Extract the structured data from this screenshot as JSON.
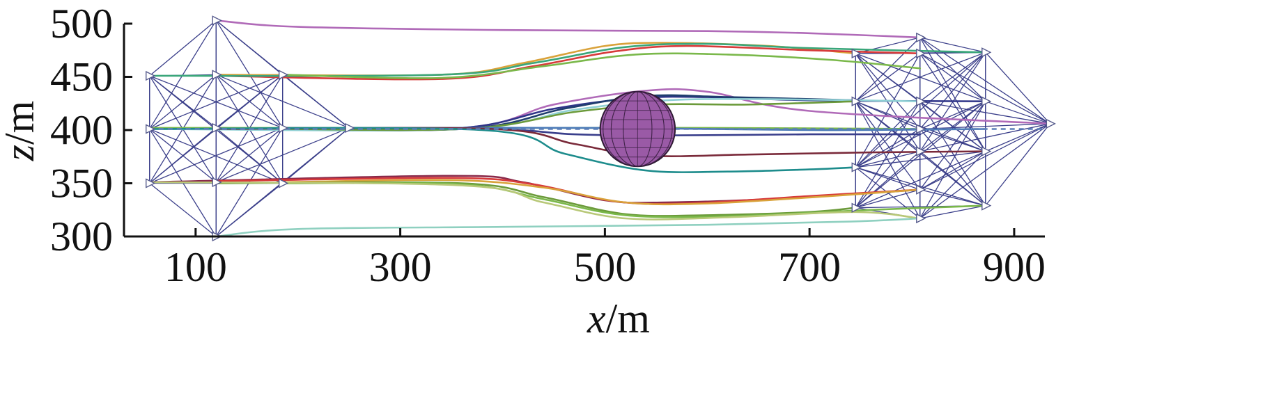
{
  "chart_data": {
    "type": "line",
    "title": "",
    "xlabel": {
      "var": "x",
      "unit": "/m"
    },
    "ylabel": {
      "var": "z",
      "unit": "/m"
    },
    "xlim": [
      30,
      930
    ],
    "ylim": [
      300,
      500
    ],
    "xticks": [
      100,
      300,
      500,
      700,
      900
    ],
    "yticks": [
      300,
      350,
      400,
      450,
      500
    ],
    "grid": false,
    "legend": "none",
    "reference_line": {
      "y": 401,
      "x": [
        55,
        930
      ],
      "style": "dashed",
      "color": "#5b7fb8"
    },
    "obstacle": {
      "shape": "sphere",
      "cx": 532,
      "cz": 401,
      "r": 29,
      "color": "#9a5aa6"
    },
    "formation_start": [
      {
        "x": 55,
        "z": 451
      },
      {
        "x": 120,
        "z": 452
      },
      {
        "x": 185,
        "z": 452
      },
      {
        "x": 55,
        "z": 401
      },
      {
        "x": 120,
        "z": 402
      },
      {
        "x": 185,
        "z": 402
      },
      {
        "x": 250,
        "z": 402
      },
      {
        "x": 55,
        "z": 350
      },
      {
        "x": 120,
        "z": 351
      },
      {
        "x": 185,
        "z": 350
      },
      {
        "x": 120,
        "z": 503
      },
      {
        "x": 120,
        "z": 300
      }
    ],
    "formation_end": [
      {
        "x": 745,
        "z": 472
      },
      {
        "x": 808,
        "z": 487
      },
      {
        "x": 808,
        "z": 472
      },
      {
        "x": 872,
        "z": 473
      },
      {
        "x": 745,
        "z": 427
      },
      {
        "x": 808,
        "z": 427
      },
      {
        "x": 872,
        "z": 427
      },
      {
        "x": 808,
        "z": 401
      },
      {
        "x": 935,
        "z": 406
      },
      {
        "x": 808,
        "z": 380
      },
      {
        "x": 872,
        "z": 380
      },
      {
        "x": 745,
        "z": 365
      },
      {
        "x": 808,
        "z": 344
      },
      {
        "x": 745,
        "z": 327
      },
      {
        "x": 808,
        "z": 317
      },
      {
        "x": 872,
        "z": 329
      }
    ],
    "series": [
      {
        "color": "#b06ab8",
        "points": [
          [
            120,
            503
          ],
          [
            200,
            497
          ],
          [
            400,
            494
          ],
          [
            600,
            493
          ],
          [
            700,
            491
          ],
          [
            808,
            487
          ]
        ]
      },
      {
        "color": "#d9a23a",
        "points": [
          [
            120,
            452
          ],
          [
            340,
            452
          ],
          [
            420,
            463
          ],
          [
            500,
            479
          ],
          [
            560,
            482
          ],
          [
            660,
            479
          ],
          [
            745,
            472
          ]
        ]
      },
      {
        "color": "#d73a3a",
        "points": [
          [
            120,
            451
          ],
          [
            340,
            448
          ],
          [
            430,
            460
          ],
          [
            510,
            474
          ],
          [
            580,
            479
          ],
          [
            700,
            475
          ],
          [
            808,
            472
          ]
        ]
      },
      {
        "color": "#3aa67a",
        "points": [
          [
            55,
            451
          ],
          [
            340,
            452
          ],
          [
            430,
            463
          ],
          [
            520,
            478
          ],
          [
            600,
            481
          ],
          [
            700,
            477
          ],
          [
            872,
            473
          ]
        ]
      },
      {
        "color": "#7ab84a",
        "points": [
          [
            185,
            452
          ],
          [
            340,
            449
          ],
          [
            440,
            460
          ],
          [
            530,
            471
          ],
          [
            620,
            471
          ],
          [
            720,
            466
          ],
          [
            808,
            458
          ]
        ]
      },
      {
        "color": "#b06ab8",
        "points": [
          [
            120,
            402
          ],
          [
            360,
            402
          ],
          [
            450,
            424
          ],
          [
            540,
            437
          ],
          [
            600,
            436
          ],
          [
            700,
            418
          ],
          [
            935,
            406
          ]
        ]
      },
      {
        "color": "#2e3488",
        "points": [
          [
            185,
            402
          ],
          [
            360,
            402
          ],
          [
            450,
            420
          ],
          [
            530,
            430
          ],
          [
            600,
            431
          ],
          [
            700,
            428
          ],
          [
            872,
            427
          ]
        ]
      },
      {
        "color": "#1f3e6e",
        "points": [
          [
            120,
            401
          ],
          [
            360,
            401
          ],
          [
            460,
            420
          ],
          [
            540,
            432
          ],
          [
            620,
            431
          ],
          [
            745,
            428
          ]
        ]
      },
      {
        "color": "#8fd0d4",
        "points": [
          [
            55,
            401
          ],
          [
            360,
            401
          ],
          [
            470,
            419
          ],
          [
            560,
            428
          ],
          [
            660,
            429
          ],
          [
            808,
            427
          ]
        ]
      },
      {
        "color": "#6b9a3a",
        "points": [
          [
            120,
            402
          ],
          [
            360,
            401
          ],
          [
            470,
            417
          ],
          [
            550,
            424
          ],
          [
            640,
            424
          ],
          [
            745,
            427
          ]
        ]
      },
      {
        "color": "#7ab84a",
        "points": [
          [
            55,
            402
          ],
          [
            400,
            402
          ],
          [
            600,
            402
          ],
          [
            808,
            401
          ]
        ]
      },
      {
        "color": "#4a7ab8",
        "points": [
          [
            250,
            402
          ],
          [
            500,
            402
          ],
          [
            700,
            400
          ],
          [
            872,
            401
          ]
        ]
      },
      {
        "color": "#3a3f8c",
        "points": [
          [
            185,
            402
          ],
          [
            390,
            401
          ],
          [
            470,
            396
          ],
          [
            560,
            395
          ],
          [
            700,
            396
          ],
          [
            808,
            396
          ]
        ]
      },
      {
        "color": "#7a2a3a",
        "points": [
          [
            120,
            401
          ],
          [
            390,
            401
          ],
          [
            470,
            387
          ],
          [
            540,
            376
          ],
          [
            640,
            377
          ],
          [
            760,
            379
          ],
          [
            872,
            380
          ]
        ]
      },
      {
        "color": "#1d8c8c",
        "points": [
          [
            55,
            401
          ],
          [
            380,
            400
          ],
          [
            460,
            378
          ],
          [
            540,
            362
          ],
          [
            620,
            361
          ],
          [
            700,
            363
          ],
          [
            745,
            365
          ]
        ]
      },
      {
        "color": "#8a2a4a",
        "points": [
          [
            55,
            351
          ],
          [
            350,
            357
          ],
          [
            420,
            351
          ],
          [
            500,
            334
          ],
          [
            560,
            332
          ],
          [
            680,
            336
          ],
          [
            808,
            344
          ]
        ]
      },
      {
        "color": "#d73a3a",
        "points": [
          [
            120,
            352
          ],
          [
            350,
            355
          ],
          [
            430,
            349
          ],
          [
            510,
            333
          ],
          [
            580,
            331
          ],
          [
            700,
            338
          ],
          [
            808,
            344
          ]
        ]
      },
      {
        "color": "#d9a23a",
        "points": [
          [
            185,
            351
          ],
          [
            350,
            353
          ],
          [
            440,
            346
          ],
          [
            520,
            332
          ],
          [
            600,
            331
          ],
          [
            720,
            338
          ],
          [
            808,
            344
          ]
        ]
      },
      {
        "color": "#6b9a3a",
        "points": [
          [
            120,
            350
          ],
          [
            360,
            350
          ],
          [
            440,
            337
          ],
          [
            520,
            321
          ],
          [
            600,
            320
          ],
          [
            700,
            323
          ],
          [
            745,
            327
          ]
        ]
      },
      {
        "color": "#7ab84a",
        "points": [
          [
            185,
            350
          ],
          [
            360,
            349
          ],
          [
            440,
            335
          ],
          [
            520,
            320
          ],
          [
            620,
            319
          ],
          [
            760,
            325
          ],
          [
            872,
            329
          ]
        ]
      },
      {
        "color": "#b8c878",
        "points": [
          [
            55,
            351
          ],
          [
            360,
            348
          ],
          [
            440,
            332
          ],
          [
            520,
            317
          ],
          [
            620,
            318
          ],
          [
            745,
            323
          ],
          [
            808,
            317
          ]
        ]
      },
      {
        "color": "#8fd0c0",
        "points": [
          [
            120,
            300
          ],
          [
            200,
            307
          ],
          [
            400,
            309
          ],
          [
            600,
            311
          ],
          [
            740,
            314
          ],
          [
            808,
            317
          ]
        ]
      }
    ]
  }
}
